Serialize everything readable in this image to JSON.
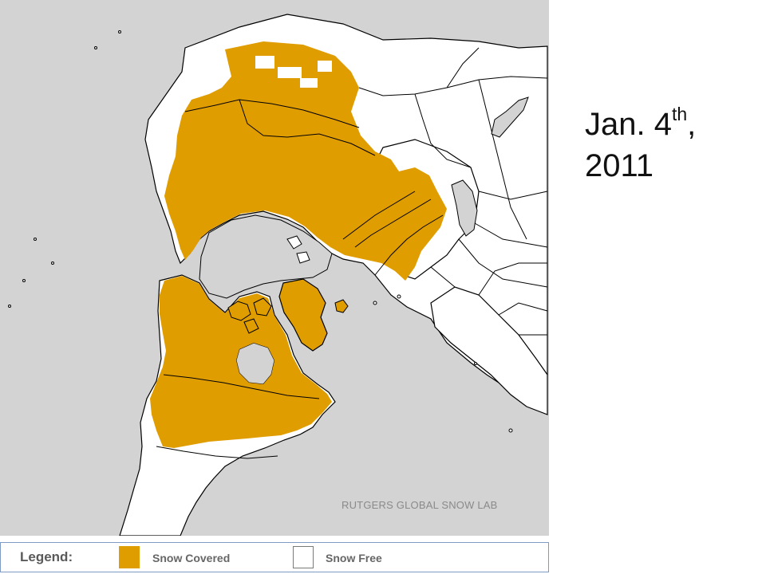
{
  "map": {
    "credit": "RUTGERS GLOBAL SNOW LAB",
    "colors": {
      "ocean": "#d3d3d3",
      "snow_covered": "#e09d00",
      "snow_free": "#ffffff",
      "border": "#000000"
    }
  },
  "legend": {
    "title": "Legend:",
    "snow_covered_label": "Snow Covered",
    "snow_free_label": "Snow Free"
  },
  "date": {
    "month_day": "Jan. 4",
    "suffix": "th",
    "comma": ",",
    "year": "2011"
  }
}
